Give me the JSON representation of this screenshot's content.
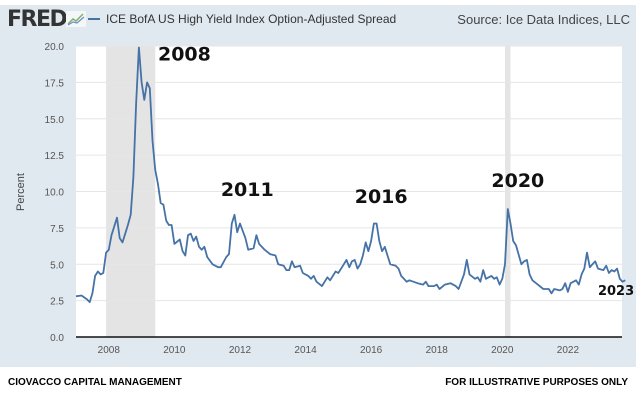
{
  "header": {
    "logo": "FRED",
    "legend_label": "ICE BofA US High Yield Index Option-Adjusted Spread",
    "source": "Source: Ice Data Indices, LLC"
  },
  "footer": {
    "left": "CIOVACCO CAPITAL MANAGEMENT",
    "right": "FOR ILLUSTRATIVE PURPOSES ONLY"
  },
  "chart_data": {
    "type": "line",
    "ylabel": "Percent",
    "ylim": [
      0,
      20
    ],
    "yticks": [
      "0.0",
      "2.5",
      "5.0",
      "7.5",
      "10.0",
      "12.5",
      "15.0",
      "17.5",
      "20.0"
    ],
    "xticks": [
      "2008",
      "2010",
      "2012",
      "2014",
      "2016",
      "2018",
      "2020",
      "2022"
    ],
    "grid": true,
    "line_color": "#4572a7",
    "recessions": [
      [
        "2007-12",
        "2009-06"
      ],
      [
        "2020-02",
        "2020-04"
      ]
    ],
    "annotations": [
      {
        "text": "2008",
        "x": "2009-07",
        "y": 19.0
      },
      {
        "text": "2011",
        "x": "2011-06",
        "y": 9.7
      },
      {
        "text": "2016",
        "x": "2015-07",
        "y": 9.2
      },
      {
        "text": "2020",
        "x": "2019-09",
        "y": 10.3
      },
      {
        "text": "2023",
        "x": "2022-12",
        "y": 2.9
      }
    ],
    "series": [
      {
        "name": "ICE BofA US High Yield Index Option-Adjusted Spread",
        "points": [
          [
            "2007-01",
            2.8
          ],
          [
            "2007-03",
            2.85
          ],
          [
            "2007-05",
            2.6
          ],
          [
            "2007-06",
            2.4
          ],
          [
            "2007-07",
            3.0
          ],
          [
            "2007-08",
            4.2
          ],
          [
            "2007-09",
            4.5
          ],
          [
            "2007-10",
            4.3
          ],
          [
            "2007-11",
            4.4
          ],
          [
            "2007-12",
            5.8
          ],
          [
            "2008-01",
            6.0
          ],
          [
            "2008-02",
            7.0
          ],
          [
            "2008-04",
            8.2
          ],
          [
            "2008-05",
            6.8
          ],
          [
            "2008-06",
            6.5
          ],
          [
            "2008-08",
            7.7
          ],
          [
            "2008-09",
            8.4
          ],
          [
            "2008-10",
            11.0
          ],
          [
            "2008-11",
            16.0
          ],
          [
            "2008-12",
            19.9
          ],
          [
            "2009-01",
            17.5
          ],
          [
            "2009-02",
            16.3
          ],
          [
            "2009-03",
            17.5
          ],
          [
            "2009-04",
            17.1
          ],
          [
            "2009-05",
            13.5
          ],
          [
            "2009-06",
            11.5
          ],
          [
            "2009-07",
            10.5
          ],
          [
            "2009-08",
            9.2
          ],
          [
            "2009-09",
            9.1
          ],
          [
            "2009-10",
            8.0
          ],
          [
            "2009-11",
            7.7
          ],
          [
            "2009-12",
            7.7
          ],
          [
            "2010-01",
            6.4
          ],
          [
            "2010-03",
            6.7
          ],
          [
            "2010-04",
            5.9
          ],
          [
            "2010-05",
            5.6
          ],
          [
            "2010-06",
            7.0
          ],
          [
            "2010-07",
            7.1
          ],
          [
            "2010-08",
            6.6
          ],
          [
            "2010-09",
            6.9
          ],
          [
            "2010-10",
            6.2
          ],
          [
            "2010-11",
            6.0
          ],
          [
            "2010-12",
            6.2
          ],
          [
            "2011-01",
            5.5
          ],
          [
            "2011-03",
            5.0
          ],
          [
            "2011-05",
            4.8
          ],
          [
            "2011-06",
            4.8
          ],
          [
            "2011-08",
            5.5
          ],
          [
            "2011-09",
            5.7
          ],
          [
            "2011-10",
            7.8
          ],
          [
            "2011-11",
            8.4
          ],
          [
            "2011-12",
            7.2
          ],
          [
            "2012-01",
            7.8
          ],
          [
            "2012-03",
            6.8
          ],
          [
            "2012-04",
            6.0
          ],
          [
            "2012-06",
            6.1
          ],
          [
            "2012-07",
            7.0
          ],
          [
            "2012-08",
            6.4
          ],
          [
            "2012-10",
            6.0
          ],
          [
            "2012-12",
            5.7
          ],
          [
            "2013-02",
            5.6
          ],
          [
            "2013-03",
            5.0
          ],
          [
            "2013-05",
            4.9
          ],
          [
            "2013-06",
            4.6
          ],
          [
            "2013-07",
            4.6
          ],
          [
            "2013-08",
            5.2
          ],
          [
            "2013-09",
            4.8
          ],
          [
            "2013-11",
            4.9
          ],
          [
            "2013-12",
            4.4
          ],
          [
            "2014-02",
            4.2
          ],
          [
            "2014-03",
            4.0
          ],
          [
            "2014-04",
            4.2
          ],
          [
            "2014-05",
            3.8
          ],
          [
            "2014-07",
            3.5
          ],
          [
            "2014-09",
            4.1
          ],
          [
            "2014-10",
            3.9
          ],
          [
            "2014-12",
            4.5
          ],
          [
            "2015-01",
            4.4
          ],
          [
            "2015-03",
            5.0
          ],
          [
            "2015-04",
            5.3
          ],
          [
            "2015-05",
            4.8
          ],
          [
            "2015-06",
            5.2
          ],
          [
            "2015-07",
            5.3
          ],
          [
            "2015-08",
            4.7
          ],
          [
            "2015-09",
            5.0
          ],
          [
            "2015-10",
            5.6
          ],
          [
            "2015-11",
            6.5
          ],
          [
            "2015-12",
            5.9
          ],
          [
            "2016-01",
            6.6
          ],
          [
            "2016-02",
            7.8
          ],
          [
            "2016-03",
            7.8
          ],
          [
            "2016-04",
            6.6
          ],
          [
            "2016-05",
            5.9
          ],
          [
            "2016-06",
            6.2
          ],
          [
            "2016-07",
            5.6
          ],
          [
            "2016-08",
            5.0
          ],
          [
            "2016-10",
            4.9
          ],
          [
            "2016-11",
            4.7
          ],
          [
            "2016-12",
            4.2
          ],
          [
            "2017-02",
            3.8
          ],
          [
            "2017-03",
            3.9
          ],
          [
            "2017-06",
            3.7
          ],
          [
            "2017-08",
            3.6
          ],
          [
            "2017-09",
            3.8
          ],
          [
            "2017-10",
            3.5
          ],
          [
            "2017-12",
            3.5
          ],
          [
            "2018-01",
            3.6
          ],
          [
            "2018-02",
            3.3
          ],
          [
            "2018-04",
            3.6
          ],
          [
            "2018-06",
            3.7
          ],
          [
            "2018-08",
            3.5
          ],
          [
            "2018-09",
            3.3
          ],
          [
            "2018-11",
            4.3
          ],
          [
            "2018-12",
            5.3
          ],
          [
            "2019-01",
            4.3
          ],
          [
            "2019-03",
            4.0
          ],
          [
            "2019-04",
            4.1
          ],
          [
            "2019-05",
            3.8
          ],
          [
            "2019-06",
            4.6
          ],
          [
            "2019-07",
            4.0
          ],
          [
            "2019-09",
            4.2
          ],
          [
            "2019-10",
            4.0
          ],
          [
            "2019-11",
            4.1
          ],
          [
            "2019-12",
            3.6
          ],
          [
            "2020-01",
            4.0
          ],
          [
            "2020-02",
            5.0
          ],
          [
            "2020-03",
            8.8
          ],
          [
            "2020-04",
            7.8
          ],
          [
            "2020-05",
            6.6
          ],
          [
            "2020-06",
            6.3
          ],
          [
            "2020-08",
            5.0
          ],
          [
            "2020-09",
            5.2
          ],
          [
            "2020-10",
            5.3
          ],
          [
            "2020-11",
            4.3
          ],
          [
            "2020-12",
            3.9
          ],
          [
            "2021-02",
            3.6
          ],
          [
            "2021-04",
            3.3
          ],
          [
            "2021-06",
            3.3
          ],
          [
            "2021-07",
            3.0
          ],
          [
            "2021-08",
            3.3
          ],
          [
            "2021-10",
            3.2
          ],
          [
            "2021-11",
            3.3
          ],
          [
            "2021-12",
            3.7
          ],
          [
            "2022-01",
            3.1
          ],
          [
            "2022-02",
            3.7
          ],
          [
            "2022-04",
            3.9
          ],
          [
            "2022-05",
            3.6
          ],
          [
            "2022-06",
            4.3
          ],
          [
            "2022-07",
            4.7
          ],
          [
            "2022-08",
            5.8
          ],
          [
            "2022-09",
            4.8
          ],
          [
            "2022-10",
            5.0
          ],
          [
            "2022-11",
            5.2
          ],
          [
            "2022-12",
            4.7
          ],
          [
            "2023-02",
            4.6
          ],
          [
            "2023-03",
            4.9
          ],
          [
            "2023-04",
            4.4
          ],
          [
            "2023-05",
            4.6
          ],
          [
            "2023-06",
            4.5
          ],
          [
            "2023-07",
            4.7
          ],
          [
            "2023-08",
            4.0
          ],
          [
            "2023-09",
            3.8
          ],
          [
            "2023-10",
            3.9
          ]
        ]
      }
    ]
  }
}
